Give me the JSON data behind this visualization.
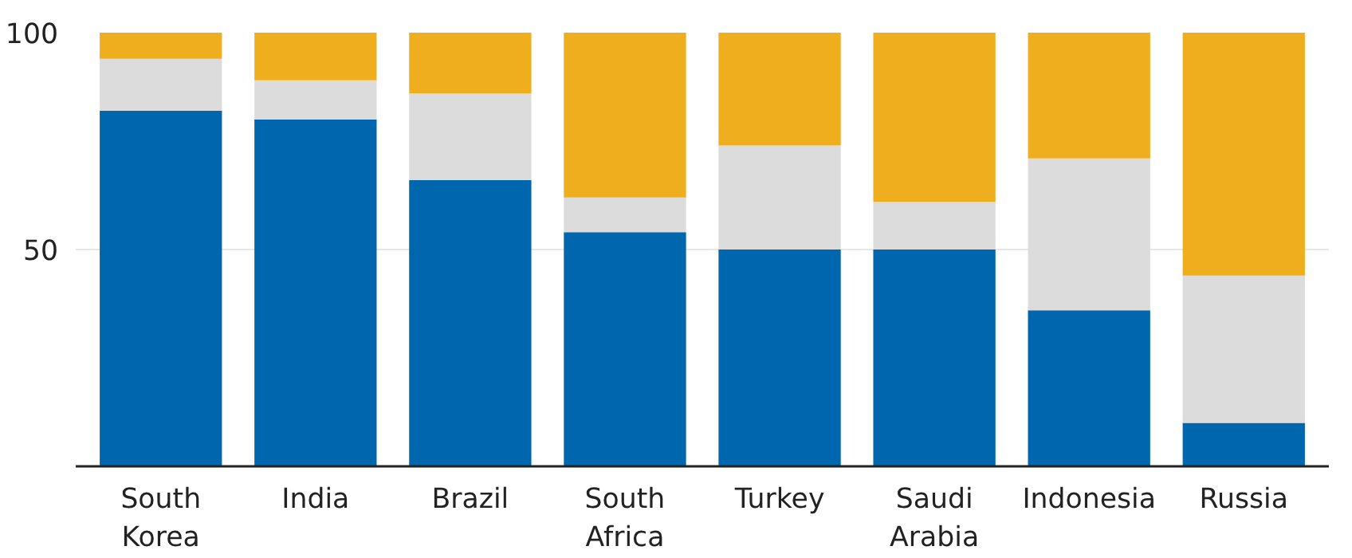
{
  "chart_data": {
    "type": "bar",
    "stacked": true,
    "categories": [
      "South Korea",
      "India",
      "Brazil",
      "South Africa",
      "Turkey",
      "Saudi Arabia",
      "Indonesia",
      "Russia"
    ],
    "series": [
      {
        "color": "#0066ad",
        "values": [
          82,
          80,
          66,
          54,
          50,
          50,
          36,
          10
        ]
      },
      {
        "color": "#dcdcdc",
        "values": [
          12,
          9,
          20,
          8,
          24,
          11,
          35,
          34
        ]
      },
      {
        "color": "#eeae1e",
        "values": [
          6,
          11,
          14,
          38,
          26,
          39,
          29,
          56
        ]
      }
    ],
    "ylim": [
      0,
      100
    ],
    "yticks": [
      50,
      100
    ],
    "grid": "y"
  }
}
